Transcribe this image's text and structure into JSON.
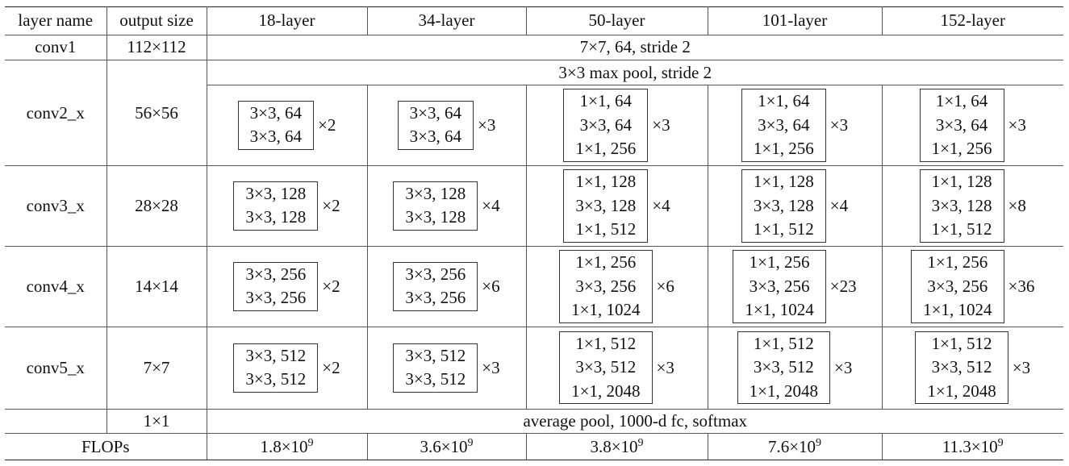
{
  "headers": [
    "layer name",
    "output size",
    "18-layer",
    "34-layer",
    "50-layer",
    "101-layer",
    "152-layer"
  ],
  "conv1": {
    "name": "conv1",
    "size": "112×112",
    "spec": "7×7, 64, stride 2"
  },
  "conv2": {
    "name": "conv2_x",
    "size": "56×56",
    "pool": "3×3 max pool, stride 2",
    "blocks": [
      {
        "lines": [
          "3×3, 64",
          "3×3, 64"
        ],
        "rep": "×2"
      },
      {
        "lines": [
          "3×3, 64",
          "3×3, 64"
        ],
        "rep": "×3"
      },
      {
        "lines": [
          "1×1, 64",
          "3×3, 64",
          "1×1, 256"
        ],
        "rep": "×3"
      },
      {
        "lines": [
          "1×1, 64",
          "3×3, 64",
          "1×1, 256"
        ],
        "rep": "×3"
      },
      {
        "lines": [
          "1×1, 64",
          "3×3, 64",
          "1×1, 256"
        ],
        "rep": "×3"
      }
    ]
  },
  "conv3": {
    "name": "conv3_x",
    "size": "28×28",
    "blocks": [
      {
        "lines": [
          "3×3, 128",
          "3×3, 128"
        ],
        "rep": "×2"
      },
      {
        "lines": [
          "3×3, 128",
          "3×3, 128"
        ],
        "rep": "×4"
      },
      {
        "lines": [
          "1×1, 128",
          "3×3, 128",
          "1×1, 512"
        ],
        "rep": "×4"
      },
      {
        "lines": [
          "1×1, 128",
          "3×3, 128",
          "1×1, 512"
        ],
        "rep": "×4"
      },
      {
        "lines": [
          "1×1, 128",
          "3×3, 128",
          "1×1, 512"
        ],
        "rep": "×8"
      }
    ]
  },
  "conv4": {
    "name": "conv4_x",
    "size": "14×14",
    "blocks": [
      {
        "lines": [
          "3×3, 256",
          "3×3, 256"
        ],
        "rep": "×2"
      },
      {
        "lines": [
          "3×3, 256",
          "3×3, 256"
        ],
        "rep": "×6"
      },
      {
        "lines": [
          "1×1, 256",
          "3×3, 256",
          "1×1, 1024"
        ],
        "rep": "×6"
      },
      {
        "lines": [
          "1×1, 256",
          "3×3, 256",
          "1×1, 1024"
        ],
        "rep": "×23"
      },
      {
        "lines": [
          "1×1, 256",
          "3×3, 256",
          "1×1, 1024"
        ],
        "rep": "×36"
      }
    ]
  },
  "conv5": {
    "name": "conv5_x",
    "size": "7×7",
    "blocks": [
      {
        "lines": [
          "3×3, 512",
          "3×3, 512"
        ],
        "rep": "×2"
      },
      {
        "lines": [
          "3×3, 512",
          "3×3, 512"
        ],
        "rep": "×3"
      },
      {
        "lines": [
          "1×1, 512",
          "3×3, 512",
          "1×1, 2048"
        ],
        "rep": "×3"
      },
      {
        "lines": [
          "1×1, 512",
          "3×3, 512",
          "1×1, 2048"
        ],
        "rep": "×3"
      },
      {
        "lines": [
          "1×1, 512",
          "3×3, 512",
          "1×1, 2048"
        ],
        "rep": "×3"
      }
    ]
  },
  "final": {
    "size": "1×1",
    "spec": "average pool, 1000-d fc, softmax"
  },
  "flops": {
    "label": "FLOPs",
    "values": [
      {
        "base": "1.8×10",
        "exp": "9"
      },
      {
        "base": "3.6×10",
        "exp": "9"
      },
      {
        "base": "3.8×10",
        "exp": "9"
      },
      {
        "base": "7.6×10",
        "exp": "9"
      },
      {
        "base": "11.3×10",
        "exp": "9"
      }
    ]
  }
}
